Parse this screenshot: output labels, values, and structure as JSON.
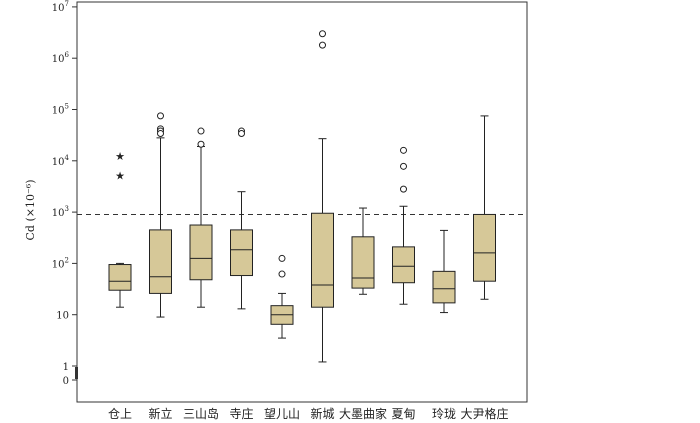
{
  "chart_data": {
    "type": "boxplot",
    "y_scale": "log",
    "ylabel": "Cd (×10⁻⁶)",
    "ylim": [
      0.1,
      20000000
    ],
    "y_ticks": [
      {
        "value": 1,
        "label": "1"
      },
      {
        "value": 10,
        "label": "10"
      },
      {
        "value": 100,
        "label": "10",
        "exp": "2"
      },
      {
        "value": 1000,
        "label": "10",
        "exp": "3"
      },
      {
        "value": 10000,
        "label": "10",
        "exp": "4"
      },
      {
        "value": 100000,
        "label": "10",
        "exp": "5"
      },
      {
        "value": 1000000,
        "label": "10",
        "exp": "6"
      },
      {
        "value": 10000000,
        "label": "10",
        "exp": "7"
      }
    ],
    "zero_label": "0",
    "reference_line": 900,
    "box_color": "#d6c898",
    "categories": [
      "仓上",
      "新立",
      "三山岛",
      "寺庄",
      "望儿山",
      "新城",
      "大墨曲家",
      "夏甸",
      "玲珑",
      "大尹格庄"
    ],
    "boxes": [
      {
        "min": 14,
        "q1": 30,
        "median": 45,
        "q3": 95,
        "max": 100,
        "outliers": [],
        "extremes": [
          12500,
          5200
        ]
      },
      {
        "min": 9,
        "q1": 26,
        "median": 55,
        "q3": 450,
        "max": 28000,
        "outliers": [
          75000,
          42000,
          38000,
          34000
        ],
        "extremes": []
      },
      {
        "min": 14,
        "q1": 48,
        "median": 125,
        "q3": 560,
        "max": 19000,
        "outliers": [
          38000,
          21000
        ],
        "extremes": []
      },
      {
        "min": 13,
        "q1": 58,
        "median": 185,
        "q3": 450,
        "max": 2500,
        "outliers": [
          38000,
          34000
        ],
        "extremes": []
      },
      {
        "min": 3.5,
        "q1": 6.5,
        "median": 10,
        "q3": 15,
        "max": 26,
        "outliers": [
          125,
          62
        ],
        "extremes": []
      },
      {
        "min": 1.2,
        "q1": 14,
        "median": 38,
        "q3": 950,
        "max": 27000,
        "outliers": [
          3000000,
          1800000
        ],
        "extremes": []
      },
      {
        "min": 25,
        "q1": 33,
        "median": 52,
        "q3": 330,
        "max": 1200,
        "outliers": [],
        "extremes": []
      },
      {
        "min": 16,
        "q1": 42,
        "median": 88,
        "q3": 210,
        "max": 1300,
        "outliers": [
          16000,
          7800,
          2800
        ],
        "extremes": []
      },
      {
        "min": 11,
        "q1": 17,
        "median": 32,
        "q3": 70,
        "max": 440,
        "outliers": [],
        "extremes": []
      },
      {
        "min": 20,
        "q1": 45,
        "median": 160,
        "q3": 900,
        "max": 75000,
        "outliers": [],
        "extremes": []
      }
    ]
  }
}
